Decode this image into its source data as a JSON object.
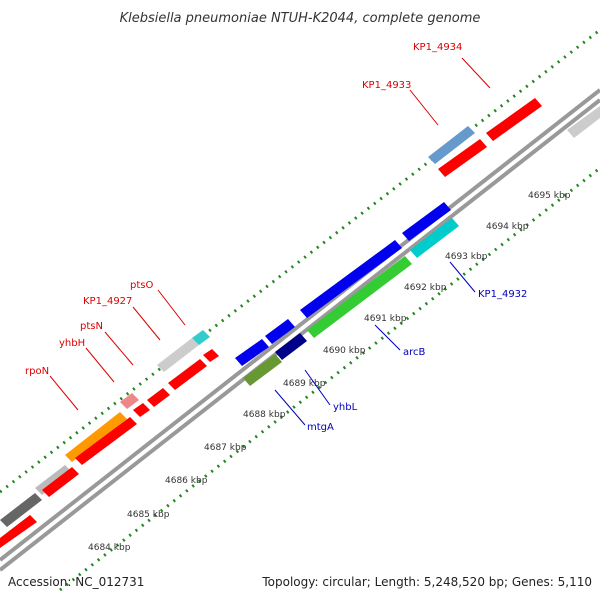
{
  "title": "Klebsiella pneumoniae NTUH-K2044, complete genome",
  "footer": {
    "accession": "Accession: NC_012731",
    "summary": "Topology: circular; Length: 5,248,520 bp; Genes: 5,110"
  },
  "colors": {
    "forward_label": "#dd0000",
    "reverse_label": "#0000bb",
    "backbone": "#999999",
    "tick_marks": "#228822"
  },
  "ticks": [
    "4684 kbp",
    "4685 kbp",
    "4686 kbp",
    "4687 kbp",
    "4688 kbp",
    "4689 kbp",
    "4690 kbp",
    "4691 kbp",
    "4692 kbp",
    "4693 kbp",
    "4694 kbp",
    "4695 kbp"
  ],
  "gene_labels": [
    {
      "name": "KP1_4934",
      "strand": "forward"
    },
    {
      "name": "KP1_4933",
      "strand": "forward"
    },
    {
      "name": "ptsO",
      "strand": "forward"
    },
    {
      "name": "KP1_4927",
      "strand": "forward"
    },
    {
      "name": "ptsN",
      "strand": "forward"
    },
    {
      "name": "yhbH",
      "strand": "forward"
    },
    {
      "name": "rpoN",
      "strand": "forward"
    },
    {
      "name": "KP1_4932",
      "strand": "reverse"
    },
    {
      "name": "arcB",
      "strand": "reverse"
    },
    {
      "name": "yhbL",
      "strand": "reverse"
    },
    {
      "name": "mtgA",
      "strand": "reverse"
    }
  ]
}
